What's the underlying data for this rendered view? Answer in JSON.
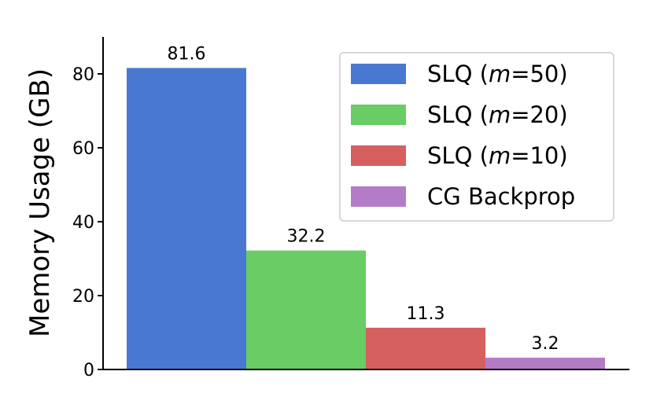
{
  "chart_data": {
    "type": "bar",
    "title": "",
    "xlabel": "",
    "ylabel": "Memory Usage (GB)",
    "ylim": [
      0,
      90
    ],
    "yticks": [
      0,
      20,
      40,
      60,
      80
    ],
    "grid": false,
    "legend_position": "top-right",
    "series": [
      {
        "name": "SLQ (m=50)",
        "name_prefix": "SLQ (",
        "name_var": "m",
        "name_suffix": "=50)",
        "value": 81.6,
        "label": "81.6",
        "color": "#4878d0"
      },
      {
        "name": "SLQ (m=20)",
        "name_prefix": "SLQ (",
        "name_var": "m",
        "name_suffix": "=20)",
        "value": 32.2,
        "label": "32.2",
        "color": "#6acc64"
      },
      {
        "name": "SLQ (m=10)",
        "name_prefix": "SLQ (",
        "name_var": "m",
        "name_suffix": "=10)",
        "value": 11.3,
        "label": "11.3",
        "color": "#d65f5f"
      },
      {
        "name": "CG Backprop",
        "name_prefix": "CG Backprop",
        "name_var": "",
        "name_suffix": "",
        "value": 3.2,
        "label": "3.2",
        "color": "#b47cc7"
      }
    ]
  }
}
